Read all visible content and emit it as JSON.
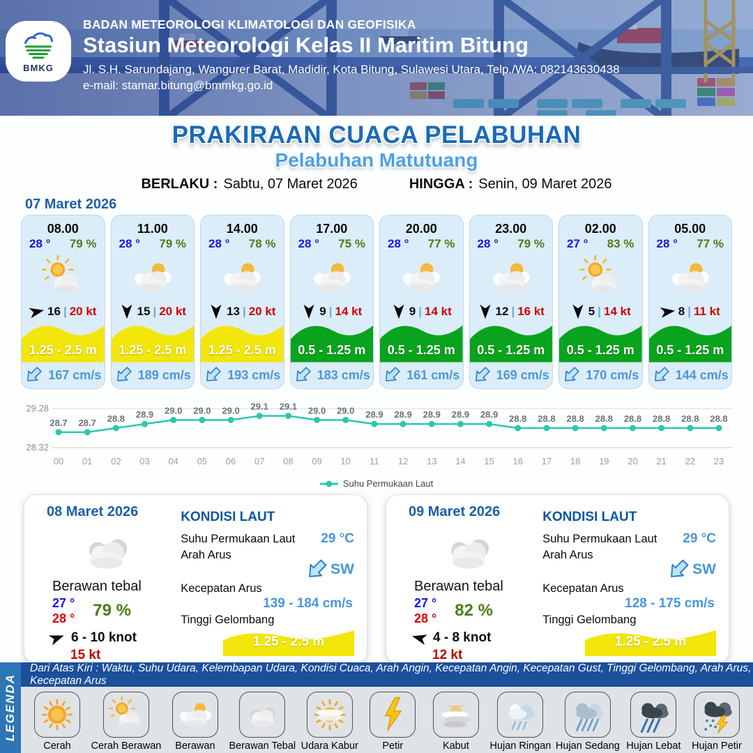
{
  "header": {
    "logo_text": "BMKG",
    "agency": "BADAN METEOROLOGI KLIMATOLOGI DAN GEOFISIKA",
    "station": "Stasiun Meteorologi Kelas II Maritim Bitung",
    "address": "Jl. S.H. Sarundajang, Wangurer Barat, Madidir, Kota Bitung, Sulawesi Utara, Telp./WA: 082143630438",
    "email": "e-mail: stamar.bitung@bmmkg.go.id"
  },
  "title": {
    "main": "PRAKIRAAN CUACA PELABUHAN",
    "subtitle": "Pelabuhan Matutuang",
    "valid_from_label": "BERLAKU :",
    "valid_from": "Sabtu, 07 Maret 2026",
    "valid_to_label": "HINGGA :",
    "valid_to": "Senin, 09 Maret 2026"
  },
  "forecast": {
    "date": "07 Maret 2026",
    "sep": "|",
    "cards": [
      {
        "time": "08.00",
        "temp": "28 °",
        "humidity": "79 %",
        "weather_icon": "cerah-berawan",
        "wind_dir_deg": -12,
        "wind_speed": "16",
        "gust": "20 kt",
        "wave": "1.25 - 2.5 m",
        "wave_level": "yellow",
        "current": "167 cm/s"
      },
      {
        "time": "11.00",
        "temp": "28 °",
        "humidity": "79 %",
        "weather_icon": "berawan",
        "wind_dir_deg": 90,
        "wind_speed": "15",
        "gust": "20 kt",
        "wave": "1.25 - 2.5 m",
        "wave_level": "yellow",
        "current": "189 cm/s"
      },
      {
        "time": "14.00",
        "temp": "28 °",
        "humidity": "78 %",
        "weather_icon": "berawan",
        "wind_dir_deg": 90,
        "wind_speed": "13",
        "gust": "20 kt",
        "wave": "1.25 - 2.5 m",
        "wave_level": "yellow",
        "current": "193 cm/s"
      },
      {
        "time": "17.00",
        "temp": "28 °",
        "humidity": "75 %",
        "weather_icon": "berawan",
        "wind_dir_deg": 90,
        "wind_speed": "9",
        "gust": "14 kt",
        "wave": "0.5 - 1.25 m",
        "wave_level": "green",
        "current": "183 cm/s"
      },
      {
        "time": "20.00",
        "temp": "28 °",
        "humidity": "77 %",
        "weather_icon": "berawan",
        "wind_dir_deg": 90,
        "wind_speed": "9",
        "gust": "14 kt",
        "wave": "0.5 - 1.25 m",
        "wave_level": "green",
        "current": "161 cm/s"
      },
      {
        "time": "23.00",
        "temp": "28 °",
        "humidity": "79 %",
        "weather_icon": "berawan",
        "wind_dir_deg": 90,
        "wind_speed": "12",
        "gust": "16 kt",
        "wave": "0.5 - 1.25 m",
        "wave_level": "green",
        "current": "169 cm/s"
      },
      {
        "time": "02.00",
        "temp": "27 °",
        "humidity": "83 %",
        "weather_icon": "cerah-berawan",
        "wind_dir_deg": 90,
        "wind_speed": "5",
        "gust": "14 kt",
        "wave": "0.5 - 1.25 m",
        "wave_level": "green",
        "current": "170 cm/s"
      },
      {
        "time": "05.00",
        "temp": "28 °",
        "humidity": "77 %",
        "weather_icon": "berawan",
        "wind_dir_deg": -8,
        "wind_speed": "8",
        "gust": "11 kt",
        "wave": "0.5 - 1.25 m",
        "wave_level": "green",
        "current": "144 cm/s"
      }
    ]
  },
  "chart_data": {
    "type": "line",
    "x": [
      "00",
      "01",
      "02",
      "03",
      "04",
      "05",
      "06",
      "07",
      "08",
      "09",
      "10",
      "11",
      "12",
      "13",
      "14",
      "15",
      "16",
      "17",
      "18",
      "19",
      "20",
      "21",
      "22",
      "23"
    ],
    "series": [
      {
        "name": "Suhu Permukaan Laut",
        "values": [
          28.7,
          28.7,
          28.8,
          28.9,
          29.0,
          29.0,
          29.0,
          29.1,
          29.1,
          29.0,
          29.0,
          28.9,
          28.9,
          28.9,
          28.9,
          28.9,
          28.8,
          28.8,
          28.8,
          28.8,
          28.8,
          28.8,
          28.8,
          28.8
        ]
      }
    ],
    "ylim": [
      28.32,
      29.28
    ],
    "yticks": [
      "29.28",
      "28.32"
    ],
    "xlabel": "",
    "ylabel": "",
    "grid": true,
    "legend_position": "bottom",
    "line_color": "#2cc7ae"
  },
  "days": [
    {
      "date": "08 Maret 2026",
      "weather_icon": "berawan-tebal",
      "condition": "Berawan tebal",
      "temp_min": "27 °",
      "temp_max": "28 °",
      "humidity": "79 %",
      "wind_dir_deg": -20,
      "wind": "6 - 10 knot",
      "gust": "15 kt",
      "sea": {
        "heading": "KONDISI LAUT",
        "sst_label": "Suhu Permukaan Laut",
        "sst": "29 °C",
        "current_dir_label": "Arah Arus",
        "current_dir": "SW",
        "current_speed_label": "Kecepatan Arus",
        "current_speed": "139 - 184 cm/s",
        "wave_label": "Tinggi Gelombang",
        "wave": "1.25 - 2.5 m"
      }
    },
    {
      "date": "09 Maret 2026",
      "weather_icon": "berawan-tebal",
      "condition": "Berawan tebal",
      "temp_min": "27 °",
      "temp_max": "28 °",
      "humidity": "82 %",
      "wind_dir_deg": 195,
      "wind": "4 - 8 knot",
      "gust": "12 kt",
      "sea": {
        "heading": "KONDISI LAUT",
        "sst_label": "Suhu Permukaan Laut",
        "sst": "29 °C",
        "current_dir_label": "Arah Arus",
        "current_dir": "SW",
        "current_speed_label": "Kecepatan Arus",
        "current_speed": "128 - 175 cm/s",
        "wave_label": "Tinggi Gelombang",
        "wave": "1.25 - 2.5 m"
      }
    }
  ],
  "legend": {
    "title": "LEGENDA",
    "description": "Dari Atas Kiri : Waktu, Suhu Udara, Kelembapan Udara, Kondisi Cuaca, Arah Angin, Kecepatan Angin, Kecepatan Gust, Tinggi Gelombang, Arah Arus, Kecepatan Arus",
    "items": [
      {
        "label": "Cerah",
        "icon": "cerah"
      },
      {
        "label": "Cerah Berawan",
        "icon": "cerah-berawan"
      },
      {
        "label": "Berawan",
        "icon": "berawan"
      },
      {
        "label": "Berawan Tebal",
        "icon": "berawan-tebal"
      },
      {
        "label": "Udara Kabur",
        "icon": "udara-kabur"
      },
      {
        "label": "Petir",
        "icon": "petir"
      },
      {
        "label": "Kabut",
        "icon": "kabut"
      },
      {
        "label": "Hujan Ringan",
        "icon": "hujan-ringan"
      },
      {
        "label": "Hujan Sedang",
        "icon": "hujan-sedang"
      },
      {
        "label": "Hujan Lebat",
        "icon": "hujan-lebat"
      },
      {
        "label": "Hujan Petir",
        "icon": "hujan-petir"
      }
    ]
  },
  "colors": {
    "title_blue": "#1a6ab8",
    "subtitle_blue": "#4da0e8",
    "temp_blue": "#1515e6",
    "humidity_green": "#4c7d16",
    "gust_red": "#cf0000",
    "wave_yellow": "#f2e60a",
    "wave_green": "#0aa31d",
    "current_blue": "#4d96db",
    "chart_teal": "#2cc7ae",
    "legend_bar_blue": "#1c4f9c",
    "legend_strip_blue": "#2e75b6"
  }
}
